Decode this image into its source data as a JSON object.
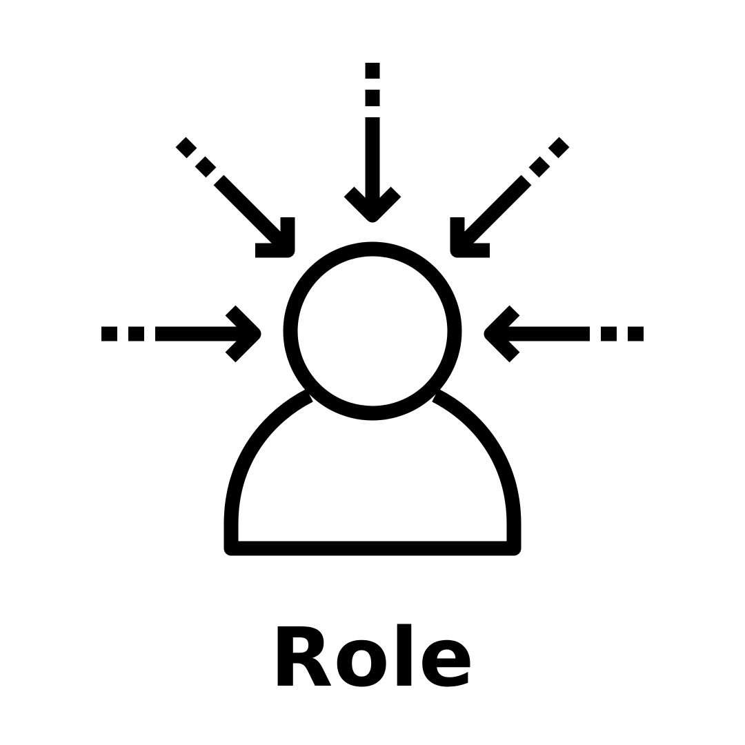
{
  "caption": "Role",
  "colors": {
    "background": "#ffffff",
    "foreground": "#000000"
  },
  "icon": "person-focus-icon"
}
